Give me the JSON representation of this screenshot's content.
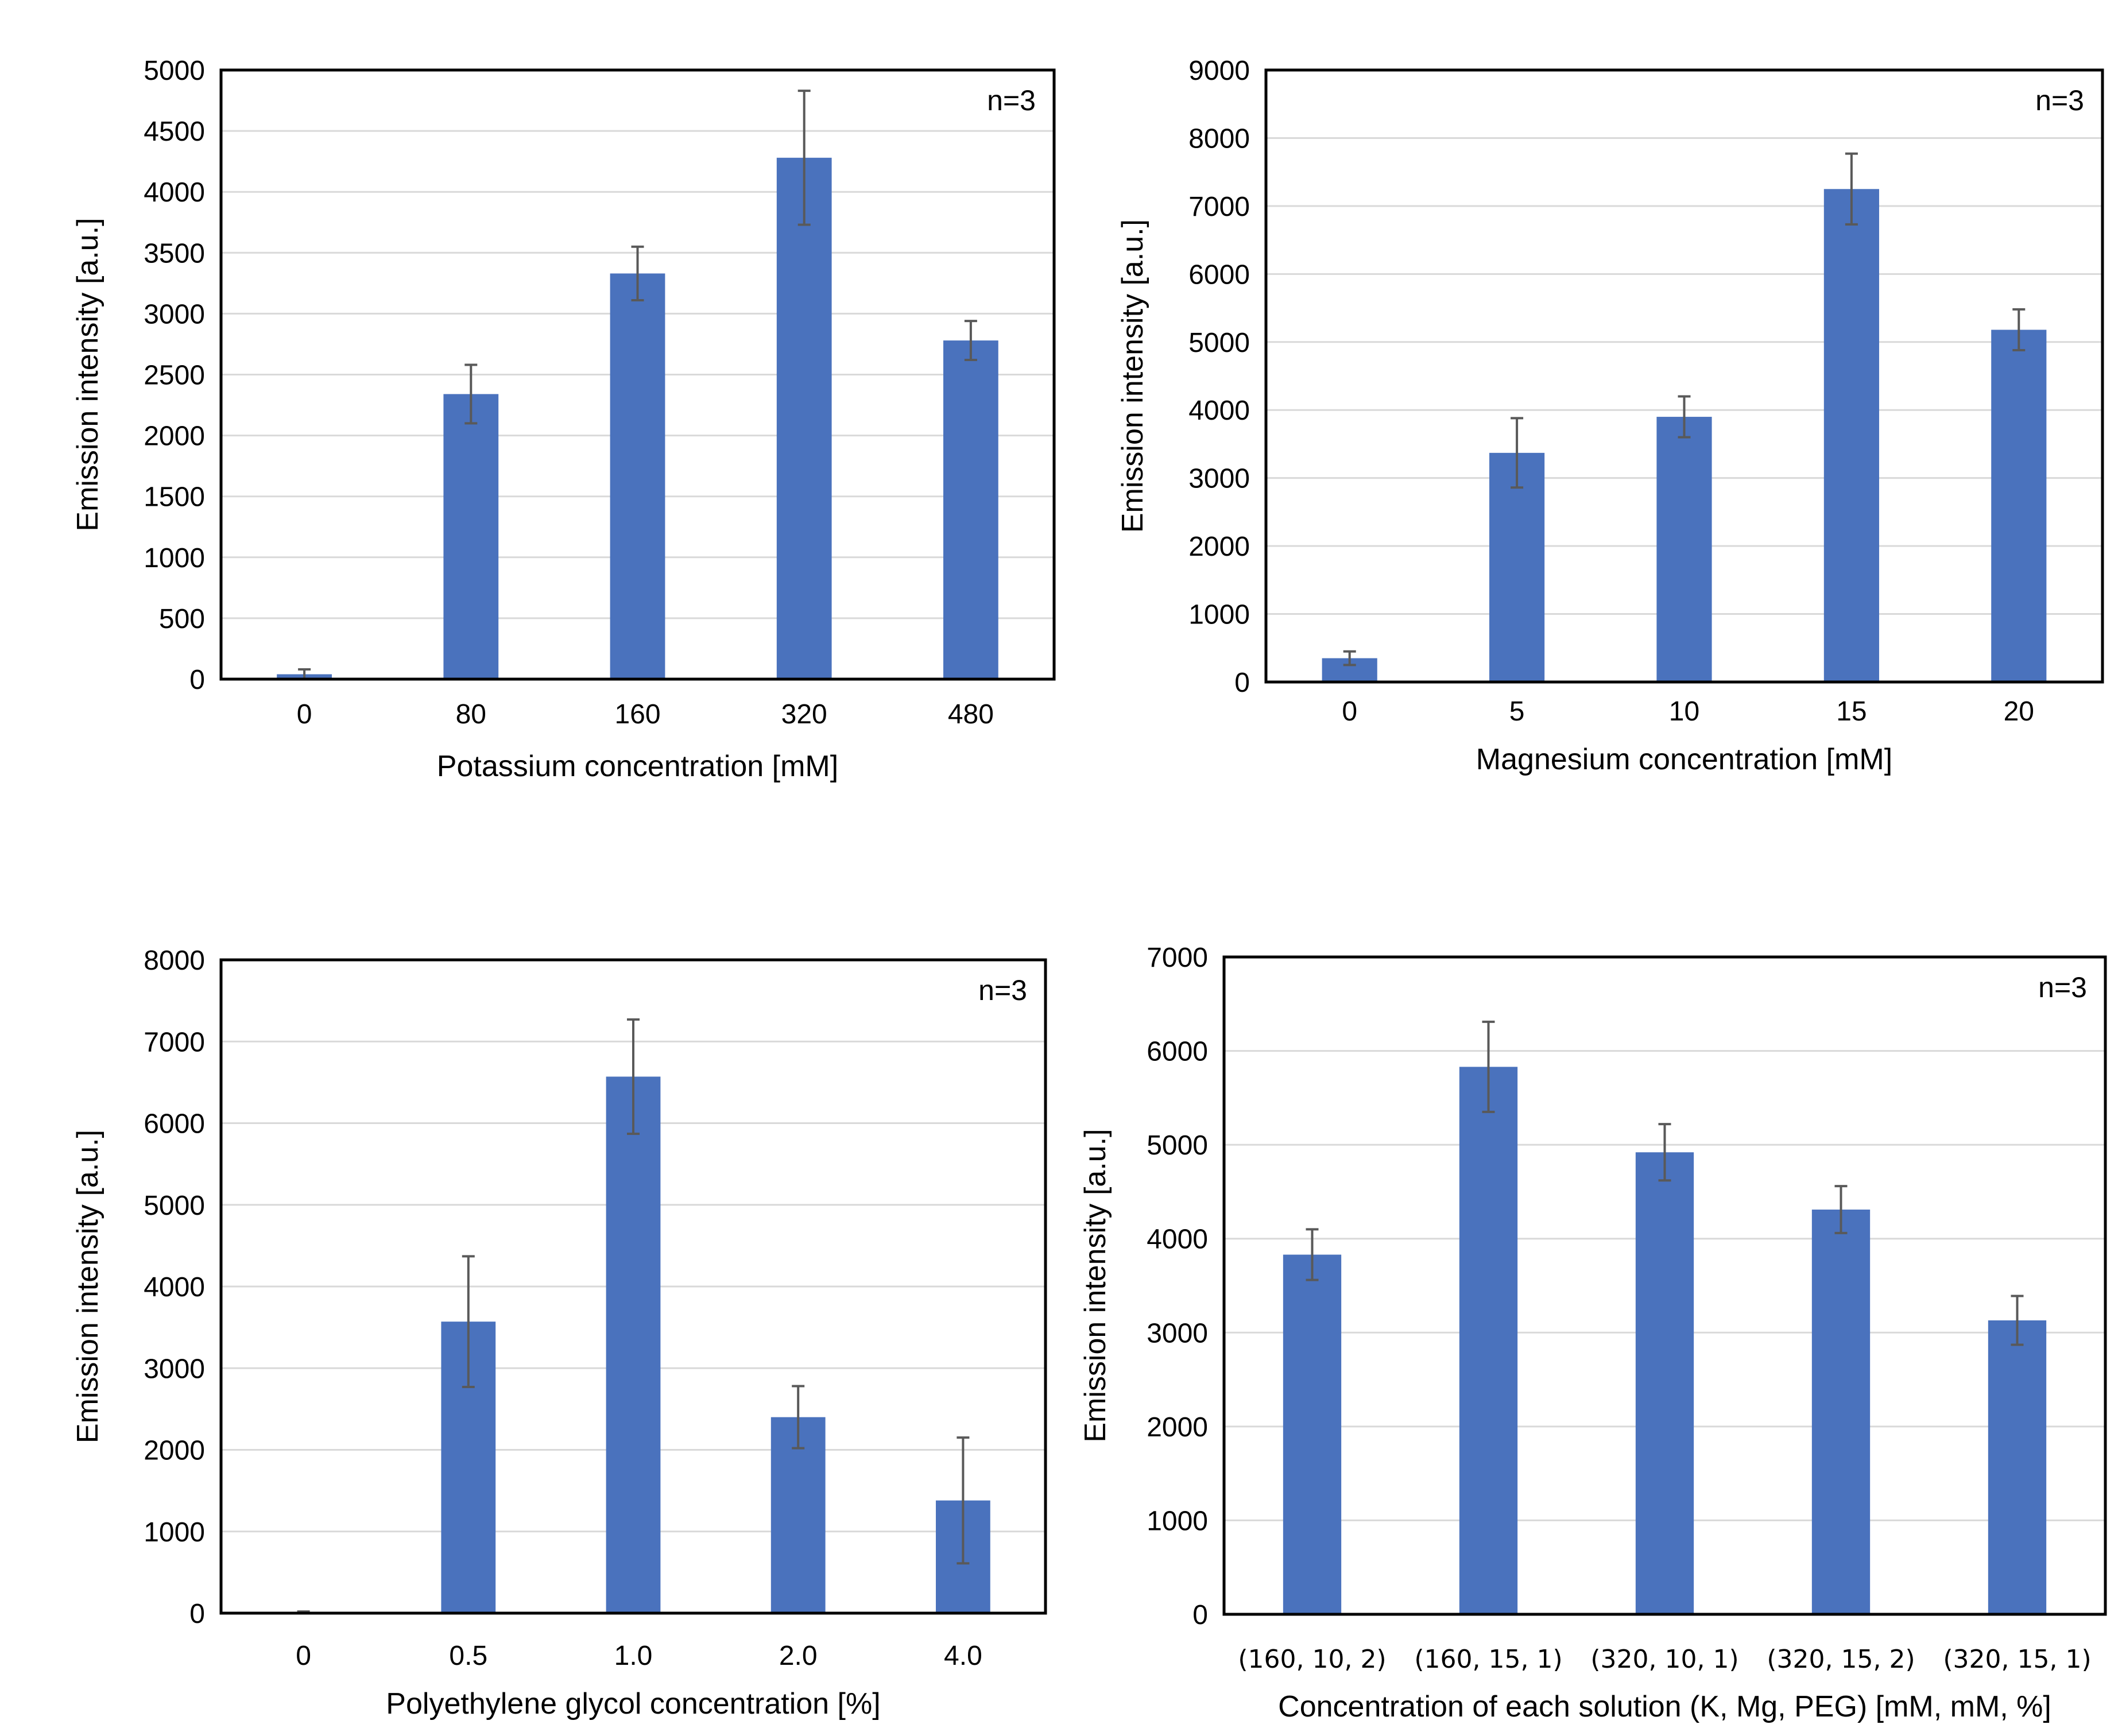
{
  "figure": {
    "description_free": true
  },
  "chart_data": [
    {
      "type": "bar",
      "xlabel": "Potassium concentration [mM]",
      "ylabel": "Emission intensity [a.u.]",
      "annotation": "n=3",
      "categories": [
        "0",
        "80",
        "160",
        "320",
        "480"
      ],
      "values": [
        40,
        2340,
        3330,
        4280,
        2780
      ],
      "errors": [
        40,
        240,
        220,
        550,
        160
      ],
      "ylim": [
        0,
        5000
      ],
      "yticks": [
        0,
        500,
        1000,
        1500,
        2000,
        2500,
        3000,
        3500,
        4000,
        4500,
        5000
      ],
      "grid": true,
      "bar_color": "#4a72bd",
      "error_color": "#595959"
    },
    {
      "type": "bar",
      "xlabel": "Magnesium concentration [mM]",
      "ylabel": "Emission intensity [a.u.]",
      "annotation": "n=3",
      "categories": [
        "0",
        "5",
        "10",
        "15",
        "20"
      ],
      "values": [
        350,
        3370,
        3900,
        7250,
        5180
      ],
      "errors": [
        100,
        510,
        300,
        520,
        300
      ],
      "ylim": [
        0,
        9000
      ],
      "yticks": [
        0,
        1000,
        2000,
        3000,
        4000,
        5000,
        6000,
        7000,
        8000,
        9000
      ],
      "grid": true,
      "bar_color": "#4a72bd",
      "error_color": "#595959"
    },
    {
      "type": "bar",
      "xlabel": "Polyethylene glycol concentration [%]",
      "ylabel": "Emission intensity [a.u.]",
      "annotation": "n=3",
      "categories": [
        "0",
        "0.5",
        "1.0",
        "2.0",
        "4.0"
      ],
      "values": [
        10,
        3570,
        6570,
        2400,
        1380
      ],
      "errors": [
        10,
        800,
        700,
        380,
        770
      ],
      "ylim": [
        0,
        8000
      ],
      "yticks": [
        0,
        1000,
        2000,
        3000,
        4000,
        5000,
        6000,
        7000,
        8000
      ],
      "grid": true,
      "bar_color": "#4a72bd",
      "error_color": "#595959"
    },
    {
      "type": "bar",
      "xlabel": "Concentration of each solution (K, Mg, PEG) [mM, mM, %]",
      "ylabel": "Emission intensity [a.u.]",
      "annotation": "n=3",
      "categories": [
        "(160, 10, 2)",
        "(160, 15, 1)",
        "(320, 10, 1)",
        "(320, 15, 2)",
        "(320, 15, 1)"
      ],
      "values": [
        3830,
        5830,
        4920,
        4310,
        3130
      ],
      "errors": [
        270,
        480,
        300,
        250,
        260
      ],
      "ylim": [
        0,
        7000
      ],
      "yticks": [
        0,
        1000,
        2000,
        3000,
        4000,
        5000,
        6000,
        7000
      ],
      "grid": true,
      "bar_color": "#4a72bd",
      "error_color": "#595959"
    }
  ]
}
